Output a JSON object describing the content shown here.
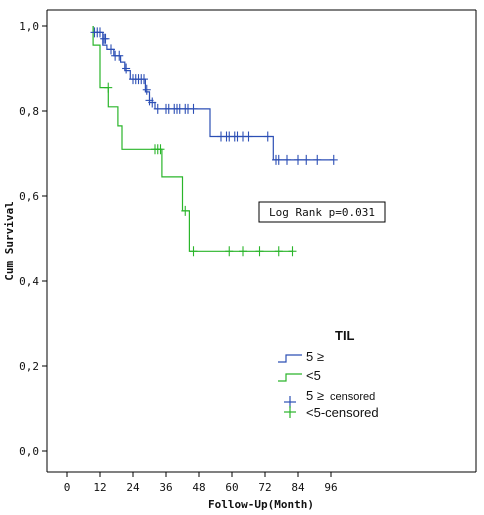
{
  "chart_data": {
    "type": "line",
    "subtype": "kaplan-meier",
    "title": "",
    "xlabel": "Follow-Up(Month)",
    "ylabel": "Cum Survival",
    "xlim": [
      0,
      100
    ],
    "ylim": [
      0,
      1.0
    ],
    "xticks": [
      "0",
      "12",
      "24",
      "36",
      "48",
      "60",
      "72",
      "84",
      "96"
    ],
    "yticks": [
      "0,0",
      "0,2",
      "0,4",
      "0,6",
      "0,8",
      "1,0"
    ],
    "grid": false,
    "annotation": "Log Rank p=0.031",
    "legend": {
      "title": "TIL",
      "placement": "lower-center",
      "entries": [
        {
          "label": "5 ≥",
          "marker": "step-line",
          "color": "#2c4fb5"
        },
        {
          "label": "<5",
          "marker": "step-line",
          "color": "#2ab52a"
        },
        {
          "label": "5 ≥",
          "suffix": "censored",
          "marker": "cross",
          "color": "#2c4fb5"
        },
        {
          "label": "<5-censored",
          "marker": "cross",
          "color": "#2ab52a"
        }
      ]
    },
    "series": [
      {
        "name": "5 ≥",
        "color": "#2c4fb5",
        "steps": [
          [
            9.5,
            1.0
          ],
          [
            9.5,
            0.985
          ],
          [
            13,
            0.985
          ],
          [
            13,
            0.955
          ],
          [
            14.5,
            0.955
          ],
          [
            14.5,
            0.945
          ],
          [
            17,
            0.945
          ],
          [
            17,
            0.93
          ],
          [
            19.5,
            0.93
          ],
          [
            19.5,
            0.915
          ],
          [
            21,
            0.915
          ],
          [
            21,
            0.895
          ],
          [
            23,
            0.895
          ],
          [
            23,
            0.875
          ],
          [
            28.5,
            0.875
          ],
          [
            28.5,
            0.845
          ],
          [
            30,
            0.845
          ],
          [
            30,
            0.82
          ],
          [
            32,
            0.82
          ],
          [
            32,
            0.805
          ],
          [
            52,
            0.805
          ],
          [
            52,
            0.74
          ],
          [
            75,
            0.74
          ],
          [
            75,
            0.685
          ],
          [
            97,
            0.685
          ]
        ],
        "censored": [
          [
            10,
            0.985
          ],
          [
            11,
            0.985
          ],
          [
            12,
            0.985
          ],
          [
            13.5,
            0.97
          ],
          [
            14,
            0.97
          ],
          [
            16,
            0.945
          ],
          [
            17.5,
            0.93
          ],
          [
            19,
            0.93
          ],
          [
            21.5,
            0.9
          ],
          [
            24,
            0.875
          ],
          [
            25,
            0.875
          ],
          [
            26,
            0.875
          ],
          [
            27,
            0.875
          ],
          [
            28,
            0.875
          ],
          [
            29,
            0.85
          ],
          [
            30,
            0.825
          ],
          [
            31,
            0.82
          ],
          [
            33,
            0.805
          ],
          [
            36,
            0.805
          ],
          [
            37,
            0.805
          ],
          [
            39,
            0.805
          ],
          [
            40,
            0.805
          ],
          [
            41,
            0.805
          ],
          [
            43,
            0.805
          ],
          [
            44,
            0.805
          ],
          [
            46,
            0.805
          ],
          [
            56,
            0.74
          ],
          [
            58,
            0.74
          ],
          [
            59,
            0.74
          ],
          [
            61,
            0.74
          ],
          [
            62,
            0.74
          ],
          [
            64,
            0.74
          ],
          [
            66,
            0.74
          ],
          [
            73,
            0.74
          ],
          [
            76,
            0.685
          ],
          [
            77,
            0.685
          ],
          [
            80,
            0.685
          ],
          [
            84,
            0.685
          ],
          [
            87,
            0.685
          ],
          [
            91,
            0.685
          ],
          [
            97,
            0.685
          ]
        ]
      },
      {
        "name": "<5",
        "color": "#2ab52a",
        "steps": [
          [
            9.5,
            1.0
          ],
          [
            9.5,
            0.955
          ],
          [
            12,
            0.955
          ],
          [
            12,
            0.855
          ],
          [
            15,
            0.855
          ],
          [
            15,
            0.81
          ],
          [
            18.5,
            0.81
          ],
          [
            18.5,
            0.765
          ],
          [
            20,
            0.765
          ],
          [
            20,
            0.71
          ],
          [
            34.5,
            0.71
          ],
          [
            34.5,
            0.645
          ],
          [
            42,
            0.645
          ],
          [
            42,
            0.565
          ],
          [
            44.5,
            0.565
          ],
          [
            44.5,
            0.47
          ],
          [
            82,
            0.47
          ]
        ],
        "censored": [
          [
            15,
            0.855
          ],
          [
            32,
            0.71
          ],
          [
            33,
            0.71
          ],
          [
            34,
            0.71
          ],
          [
            43,
            0.565
          ],
          [
            46,
            0.47
          ],
          [
            59,
            0.47
          ],
          [
            64,
            0.47
          ],
          [
            70,
            0.47
          ],
          [
            77,
            0.47
          ],
          [
            82,
            0.47
          ]
        ]
      }
    ]
  }
}
